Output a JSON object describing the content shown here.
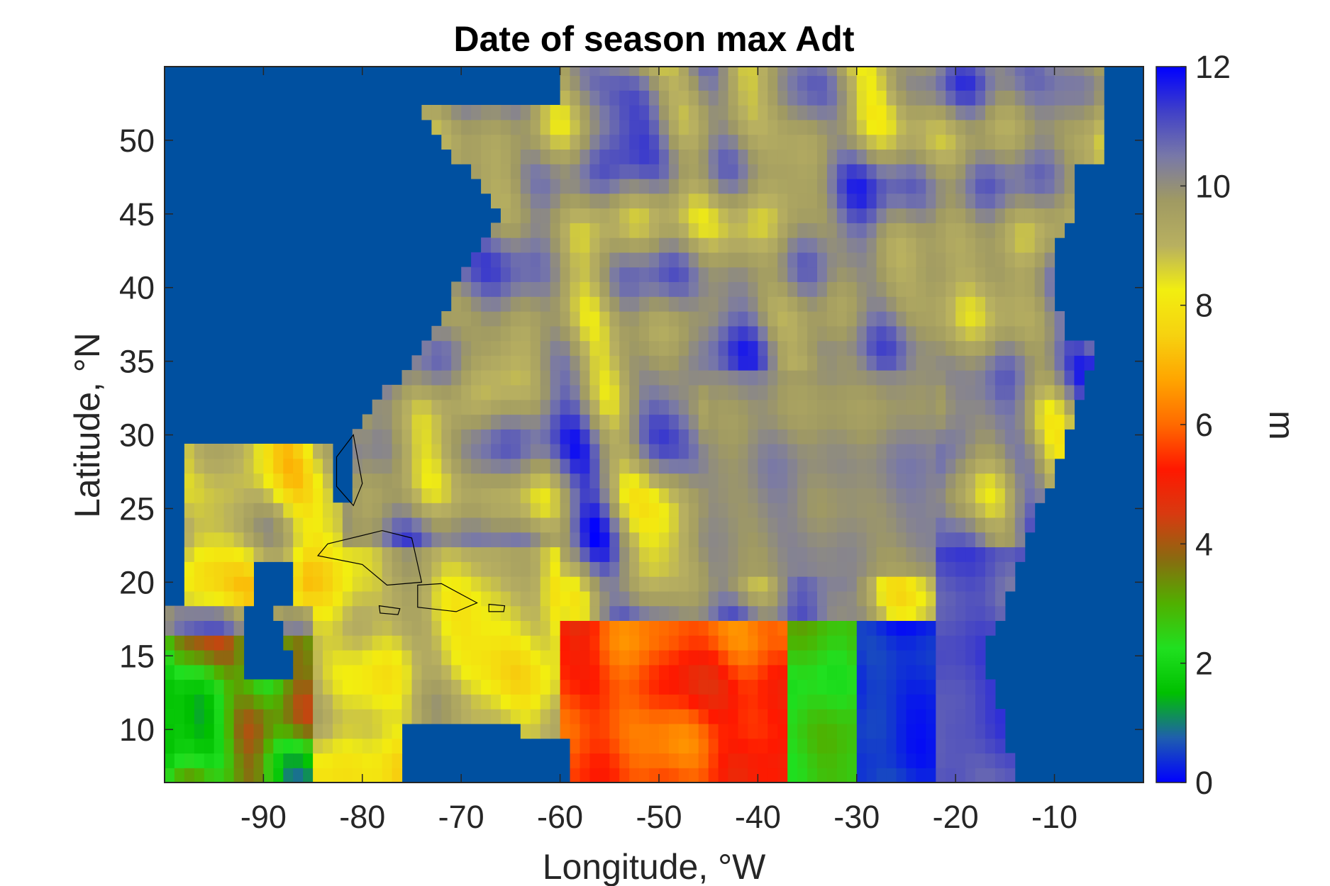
{
  "chart_data": {
    "type": "heatmap",
    "title": "Date of season max Adt",
    "xlabel": "Longitude, °W",
    "ylabel": "Latitude, °N",
    "colorbar_label": "m",
    "xlim": [
      -100,
      -1
    ],
    "ylim": [
      6.4,
      55
    ],
    "clim": [
      0,
      12
    ],
    "x_ticks": [
      -90,
      -80,
      -70,
      -60,
      -50,
      -40,
      -30,
      -20,
      -10
    ],
    "x_tick_labels": [
      "-90",
      "-80",
      "-70",
      "-60",
      "-50",
      "-40",
      "-30",
      "-20",
      "-10"
    ],
    "y_ticks": [
      10,
      15,
      20,
      25,
      30,
      35,
      40,
      45,
      50
    ],
    "y_tick_labels": [
      "10",
      "15",
      "20",
      "25",
      "30",
      "35",
      "40",
      "45",
      "50"
    ],
    "colorbar_ticks": [
      0,
      2,
      4,
      6,
      8,
      10,
      12
    ],
    "colorbar_tick_labels": [
      "0",
      "2",
      "4",
      "6",
      "8",
      "10",
      "12"
    ],
    "colormap": [
      "#0000ff",
      "#1f5fae",
      "#00c000",
      "#20e020",
      "#50b000",
      "#8a6a10",
      "#d83a10",
      "#ff1800",
      "#ff6a00",
      "#ffa500",
      "#f6d210",
      "#f2ee10",
      "#b8b060",
      "#a09a62",
      "#7878a8",
      "#4040c8",
      "#0000ff"
    ],
    "land_color": "#0050a0",
    "grid": false,
    "legend": "colorbar-right"
  }
}
